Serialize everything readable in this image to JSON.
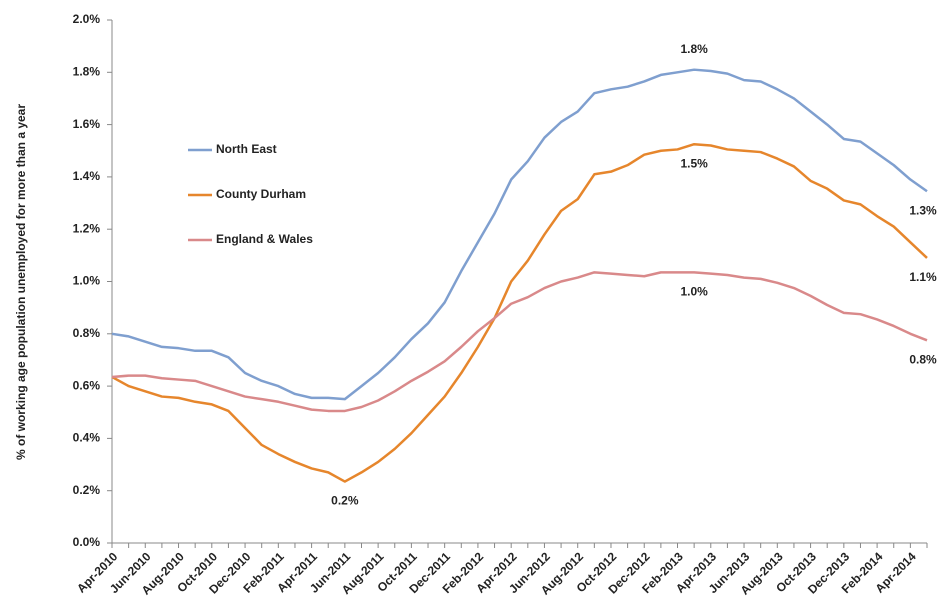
{
  "chart_data": {
    "type": "line",
    "y_label": "% of working age population unemployed for more than a year",
    "categories": [
      "Apr-2010",
      null,
      "Jun-2010",
      null,
      "Aug-2010",
      null,
      "Oct-2010",
      null,
      "Dec-2010",
      null,
      "Feb-2011",
      null,
      "Apr-2011",
      null,
      "Jun-2011",
      null,
      "Aug-2011",
      null,
      "Oct-2011",
      null,
      "Dec-2011",
      null,
      "Feb-2012",
      null,
      "Apr-2012",
      null,
      "Jun-2012",
      null,
      "Aug-2012",
      null,
      "Oct-2012",
      null,
      "Dec-2012",
      null,
      "Feb-2013",
      null,
      "Apr-2013",
      null,
      "Jun-2013",
      null,
      "Aug-2013",
      null,
      "Oct-2013",
      null,
      "Dec-2013",
      null,
      "Feb-2014",
      null,
      "Apr-2014",
      null
    ],
    "ylim": [
      0,
      2.0
    ],
    "yticks": [
      {
        "value": 0,
        "label": "0.0%"
      },
      {
        "value": 0.2,
        "label": "0.2%"
      },
      {
        "value": 0.4,
        "label": "0.4%"
      },
      {
        "value": 0.6,
        "label": "0.6%"
      },
      {
        "value": 0.8,
        "label": "0.8%"
      },
      {
        "value": 1.0,
        "label": "1.0%"
      },
      {
        "value": 1.2,
        "label": "1.2%"
      },
      {
        "value": 1.4,
        "label": "1.4%"
      },
      {
        "value": 1.6,
        "label": "1.6%"
      },
      {
        "value": 1.8,
        "label": "1.8%"
      },
      {
        "value": 2.0,
        "label": "2.0%"
      }
    ],
    "grid": false,
    "series": [
      {
        "name": "North East",
        "color": "#7f9fcf",
        "values": [
          0.8,
          0.79,
          0.77,
          0.75,
          0.745,
          0.735,
          0.735,
          0.71,
          0.65,
          0.62,
          0.6,
          0.57,
          0.555,
          0.555,
          0.55,
          0.6,
          0.65,
          0.71,
          0.78,
          0.84,
          0.92,
          1.04,
          1.15,
          1.26,
          1.39,
          1.46,
          1.55,
          1.61,
          1.65,
          1.72,
          1.735,
          1.745,
          1.765,
          1.79,
          1.8,
          1.81,
          1.805,
          1.795,
          1.77,
          1.765,
          1.735,
          1.7,
          1.65,
          1.6,
          1.545,
          1.535,
          1.49,
          1.445,
          1.39,
          1.345
        ],
        "value_labels": [
          null,
          null,
          null,
          null,
          null,
          null,
          null,
          null,
          null,
          null,
          null,
          null,
          null,
          null,
          null,
          null,
          null,
          null,
          null,
          null,
          null,
          null,
          null,
          null,
          null,
          null,
          null,
          null,
          null,
          null,
          null,
          null,
          null,
          null,
          null,
          "1.8%",
          null,
          null,
          null,
          null,
          null,
          null,
          null,
          null,
          null,
          null,
          null,
          null,
          null,
          "1.3%"
        ]
      },
      {
        "name": "County Durham",
        "color": "#e6862c",
        "values": [
          0.635,
          0.6,
          0.58,
          0.56,
          0.555,
          0.54,
          0.53,
          0.505,
          0.44,
          0.375,
          0.34,
          0.31,
          0.285,
          0.27,
          0.235,
          0.27,
          0.31,
          0.36,
          0.42,
          0.49,
          0.56,
          0.65,
          0.75,
          0.86,
          1.0,
          1.08,
          1.18,
          1.27,
          1.315,
          1.41,
          1.42,
          1.445,
          1.485,
          1.5,
          1.505,
          1.525,
          1.52,
          1.505,
          1.5,
          1.495,
          1.47,
          1.44,
          1.385,
          1.355,
          1.31,
          1.295,
          1.25,
          1.21,
          1.15,
          1.09
        ],
        "value_labels": [
          null,
          null,
          null,
          null,
          null,
          null,
          null,
          null,
          null,
          null,
          null,
          null,
          null,
          null,
          "0.2%",
          null,
          null,
          null,
          null,
          null,
          null,
          null,
          null,
          null,
          null,
          null,
          null,
          null,
          null,
          null,
          null,
          null,
          null,
          null,
          null,
          "1.5%",
          null,
          null,
          null,
          null,
          null,
          null,
          null,
          null,
          null,
          null,
          null,
          null,
          null,
          "1.1%"
        ]
      },
      {
        "name": "England & Wales",
        "color": "#d9898a",
        "values": [
          0.635,
          0.64,
          0.64,
          0.63,
          0.625,
          0.62,
          0.6,
          0.58,
          0.56,
          0.55,
          0.54,
          0.525,
          0.51,
          0.505,
          0.505,
          0.52,
          0.545,
          0.58,
          0.62,
          0.655,
          0.695,
          0.75,
          0.81,
          0.86,
          0.915,
          0.94,
          0.975,
          1.0,
          1.015,
          1.035,
          1.03,
          1.025,
          1.02,
          1.035,
          1.035,
          1.035,
          1.03,
          1.025,
          1.015,
          1.01,
          0.995,
          0.975,
          0.945,
          0.91,
          0.88,
          0.875,
          0.855,
          0.83,
          0.8,
          0.775
        ],
        "value_labels": [
          null,
          null,
          null,
          null,
          null,
          null,
          null,
          null,
          null,
          null,
          null,
          null,
          null,
          null,
          null,
          null,
          null,
          null,
          null,
          null,
          null,
          null,
          null,
          null,
          null,
          null,
          null,
          null,
          null,
          null,
          null,
          null,
          null,
          null,
          null,
          "1.0%",
          null,
          null,
          null,
          null,
          null,
          null,
          null,
          null,
          null,
          null,
          null,
          null,
          null,
          "0.8%"
        ]
      }
    ]
  }
}
